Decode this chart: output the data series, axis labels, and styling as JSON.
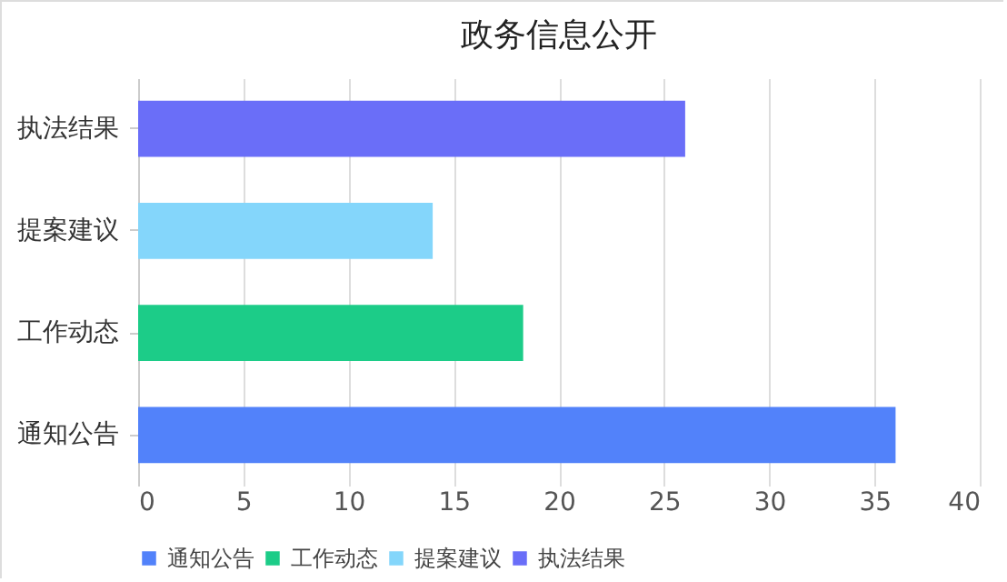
{
  "chart_data": {
    "type": "bar",
    "orientation": "horizontal",
    "stacked": true,
    "title": "政务信息公开",
    "categories": [
      "执法结果",
      "提案建议",
      "工作动态",
      "通知公告"
    ],
    "series": [
      {
        "name": "通知公告",
        "color": "#5282fa",
        "values": [
          null,
          null,
          null,
          36
        ]
      },
      {
        "name": "工作动态",
        "color": "#1ccc88",
        "values": [
          null,
          null,
          18.3,
          null
        ]
      },
      {
        "name": "提案建议",
        "color": "#84d6fb",
        "values": [
          null,
          14,
          null,
          null
        ]
      },
      {
        "name": "执法结果",
        "color": "#6a6ef8",
        "values": [
          26,
          null,
          null,
          null
        ]
      }
    ],
    "xlim": [
      0,
      40
    ],
    "xticks": [
      0,
      5,
      10,
      15,
      20,
      25,
      30,
      35,
      40
    ],
    "grid": "x",
    "legend": "bottom"
  }
}
